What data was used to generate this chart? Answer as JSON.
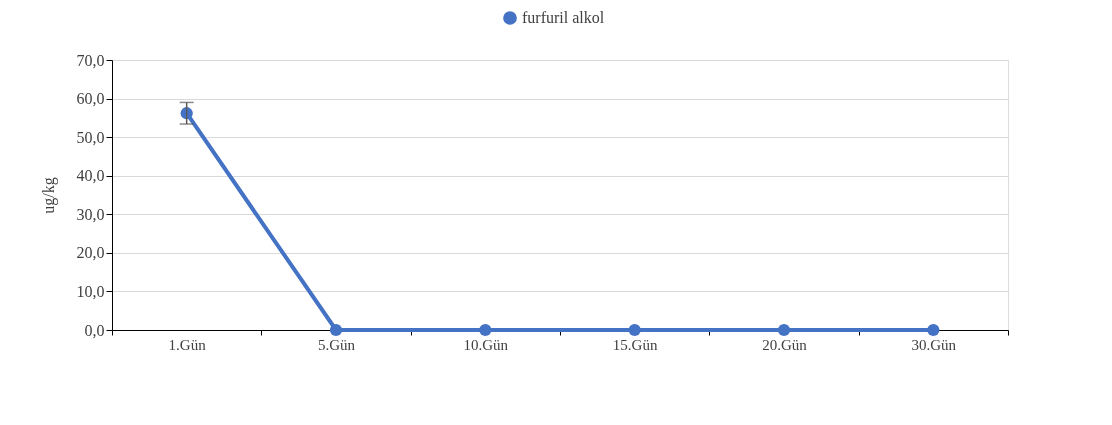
{
  "chart_data": {
    "type": "line",
    "ylabel": "ug/kg",
    "categories": [
      "1.Gün",
      "5.Gün",
      "10.Gün",
      "15.Gün",
      "20.Gün",
      "30.Gün"
    ],
    "series": [
      {
        "name": "furfuril alkol",
        "color": "#4472c4",
        "values": [
          56.2,
          0,
          0,
          0,
          0,
          0
        ],
        "errors": [
          2.8,
          null,
          null,
          null,
          null,
          null
        ]
      }
    ],
    "ylim": [
      0,
      70
    ],
    "yticks": [
      {
        "value": 0,
        "label": "0,0"
      },
      {
        "value": 10,
        "label": "10,0"
      },
      {
        "value": 20,
        "label": "20,0"
      },
      {
        "value": 30,
        "label": "30,0"
      },
      {
        "value": 40,
        "label": "40,0"
      },
      {
        "value": 50,
        "label": "50,0"
      },
      {
        "value": 60,
        "label": "60,0"
      },
      {
        "value": 70,
        "label": "70,0"
      }
    ],
    "grid": "y",
    "legend": "top",
    "marker": "circle",
    "line_style": "solid"
  }
}
